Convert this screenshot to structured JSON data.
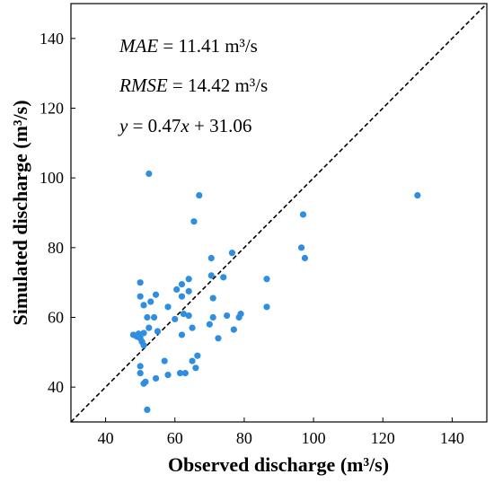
{
  "chart_data": {
    "type": "scatter",
    "xlabel": "Observed discharge (m³/s)",
    "ylabel": "Simulated discharge (m³/s)",
    "xlim": [
      30,
      150
    ],
    "ylim": [
      30,
      150
    ],
    "xticks": [
      40,
      60,
      80,
      100,
      120,
      140
    ],
    "yticks": [
      40,
      60,
      80,
      100,
      120,
      140
    ],
    "grid": false,
    "reference_line": {
      "label": "1:1",
      "style": "dashed",
      "color": "#000000"
    },
    "annotations": [
      {
        "id": "mae",
        "var": "MAE",
        "text": " = 11.41 m³/s"
      },
      {
        "id": "rmse",
        "var": "RMSE",
        "text": " = 14.42 m³/s"
      },
      {
        "id": "fit",
        "parts": [
          "y",
          " = 0.47",
          "x",
          " + 31.06"
        ]
      }
    ],
    "point_color": "#2f8ee0",
    "points": [
      [
        52.5,
        101.2
      ],
      [
        67,
        95
      ],
      [
        130,
        95
      ],
      [
        65.5,
        87.5
      ],
      [
        97,
        89.5
      ],
      [
        96.5,
        80
      ],
      [
        97.5,
        77
      ],
      [
        76.5,
        78.5
      ],
      [
        70.5,
        77
      ],
      [
        74,
        71.5
      ],
      [
        86.5,
        71
      ],
      [
        70.5,
        72
      ],
      [
        50,
        70
      ],
      [
        64,
        71
      ],
      [
        60.5,
        68
      ],
      [
        62,
        69.5
      ],
      [
        64,
        67.5
      ],
      [
        50,
        66
      ],
      [
        53,
        64.5
      ],
      [
        54.5,
        66.5
      ],
      [
        62,
        66
      ],
      [
        71,
        65.5
      ],
      [
        51,
        63.5
      ],
      [
        58,
        63
      ],
      [
        62.5,
        61
      ],
      [
        64,
        60.5
      ],
      [
        52,
        60
      ],
      [
        54,
        60
      ],
      [
        60,
        59.5
      ],
      [
        70,
        58
      ],
      [
        71,
        60
      ],
      [
        75,
        60.5
      ],
      [
        78.5,
        60
      ],
      [
        79,
        61
      ],
      [
        86.5,
        63
      ],
      [
        52.5,
        57
      ],
      [
        55,
        56
      ],
      [
        62,
        55
      ],
      [
        65,
        57
      ],
      [
        72.5,
        54
      ],
      [
        77,
        56.5
      ],
      [
        48,
        55
      ],
      [
        49,
        54.5
      ],
      [
        50,
        55
      ],
      [
        50,
        54
      ],
      [
        51,
        55.5
      ],
      [
        50.5,
        53
      ],
      [
        49.5,
        55.3
      ],
      [
        51,
        52
      ],
      [
        66.5,
        49
      ],
      [
        57,
        47.5
      ],
      [
        65,
        47.5
      ],
      [
        50,
        46
      ],
      [
        66,
        45.5
      ],
      [
        50,
        44
      ],
      [
        54.5,
        42.5
      ],
      [
        58,
        43.5
      ],
      [
        61.5,
        44
      ],
      [
        63,
        44
      ],
      [
        51,
        41
      ],
      [
        51.5,
        41.5
      ],
      [
        52,
        33.5
      ]
    ]
  }
}
